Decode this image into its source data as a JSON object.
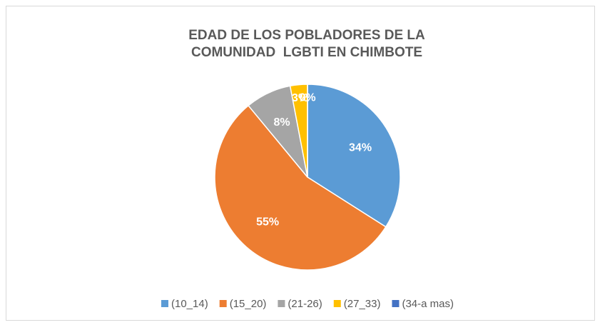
{
  "chart_data": {
    "type": "pie",
    "title": "EDAD DE LOS POBLADORES DE LA COMUNIDAD  LGBTI EN CHIMBOTE",
    "categories": [
      "(10_14)",
      "(15_20)",
      "(21-26)",
      "(27_33)",
      "(34-a mas)"
    ],
    "values": [
      34,
      55,
      8,
      3,
      0
    ],
    "value_labels": [
      "34%",
      "55%",
      "8%",
      "3%",
      "0%"
    ],
    "colors": [
      "#5b9bd5",
      "#ed7d31",
      "#a5a5a5",
      "#ffc000",
      "#4472c4"
    ],
    "legend": "bottom"
  }
}
